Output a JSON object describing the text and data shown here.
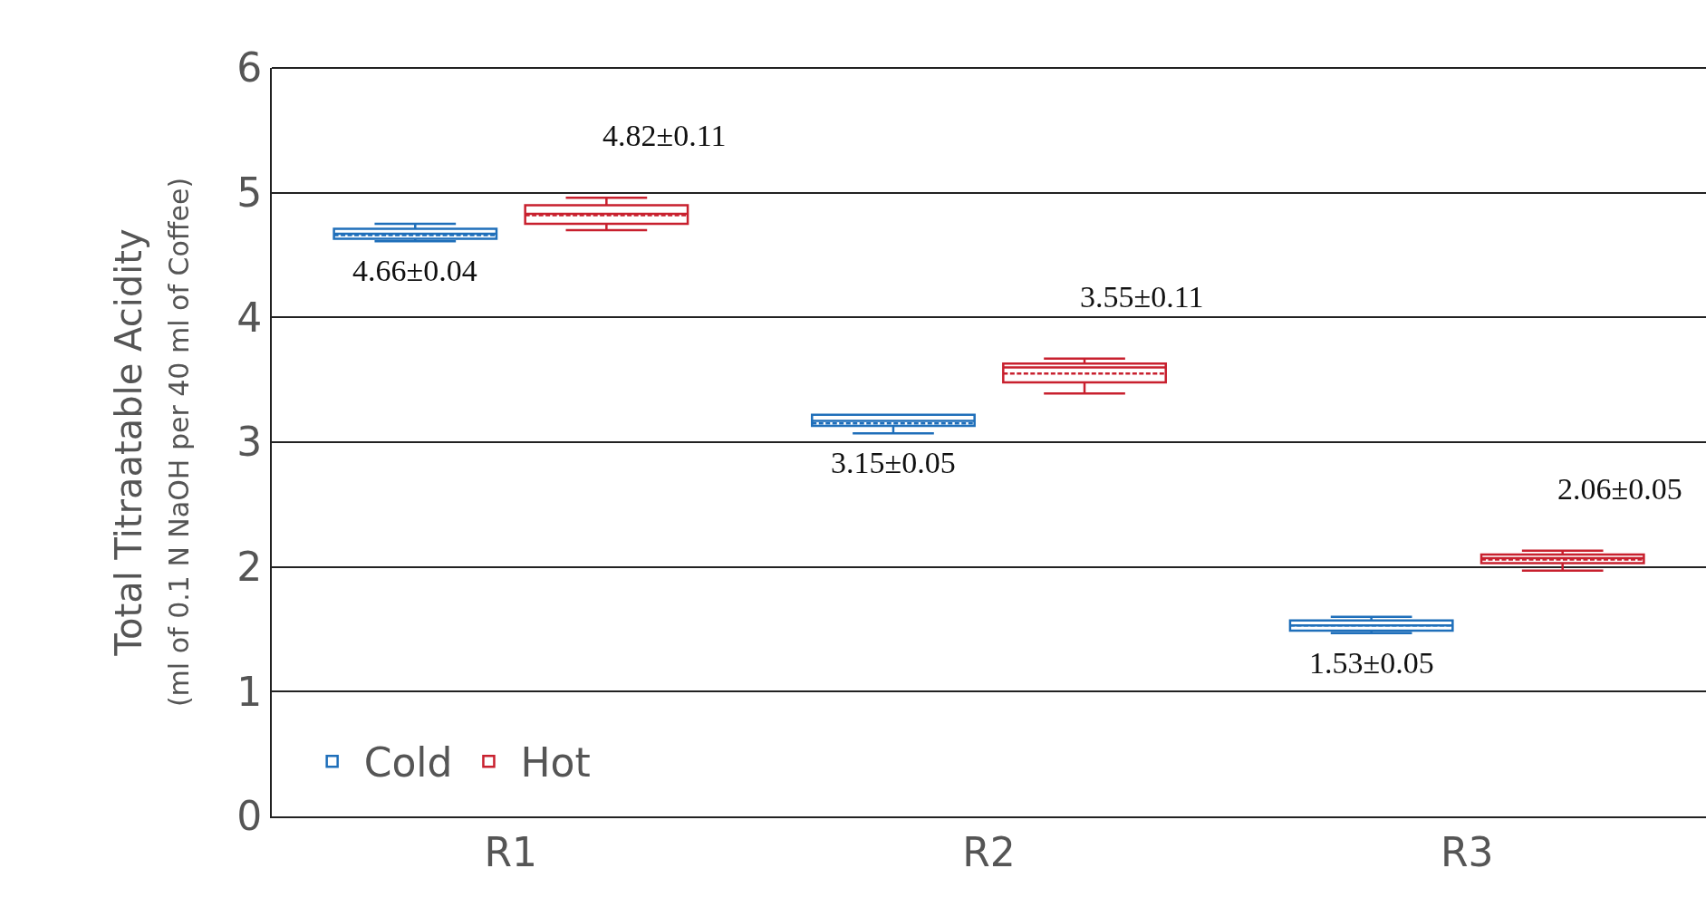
{
  "chart_data": {
    "type": "box",
    "ylabel": "Total Titraatable Acidity\n(ml of 0.1 N NaOH per 40 ml of Coffee)",
    "categories": [
      "R1",
      "R2",
      "R3"
    ],
    "series": [
      {
        "name": "Cold",
        "color": "#1f6fba",
        "boxes": [
          {
            "low": 4.61,
            "q1": 4.63,
            "median": 4.67,
            "q3": 4.71,
            "high": 4.75,
            "mean": 4.66
          },
          {
            "low": 3.07,
            "q1": 3.13,
            "median": 3.17,
            "q3": 3.22,
            "high": 3.22,
            "mean": 3.15
          },
          {
            "low": 1.47,
            "q1": 1.49,
            "median": 1.53,
            "q3": 1.57,
            "high": 1.6,
            "mean": 1.53
          }
        ]
      },
      {
        "name": "Hot",
        "color": "#c8202e",
        "boxes": [
          {
            "low": 4.7,
            "q1": 4.75,
            "median": 4.83,
            "q3": 4.9,
            "high": 4.96,
            "mean": 4.82
          },
          {
            "low": 3.39,
            "q1": 3.48,
            "median": 3.6,
            "q3": 3.63,
            "high": 3.67,
            "mean": 3.55
          },
          {
            "low": 1.97,
            "q1": 2.03,
            "median": 2.07,
            "q3": 2.1,
            "high": 2.13,
            "mean": 2.06
          }
        ]
      }
    ],
    "annotations": [
      "4.66±0.04",
      "4.82±0.11",
      "3.15±0.05",
      "3.55±0.11",
      "1.53±0.05",
      "2.06±0.05"
    ],
    "ylim": [
      0,
      6
    ],
    "yticks": [
      0,
      1,
      2,
      3,
      4,
      5,
      6
    ],
    "grid": "y",
    "legend": "bottom left"
  }
}
